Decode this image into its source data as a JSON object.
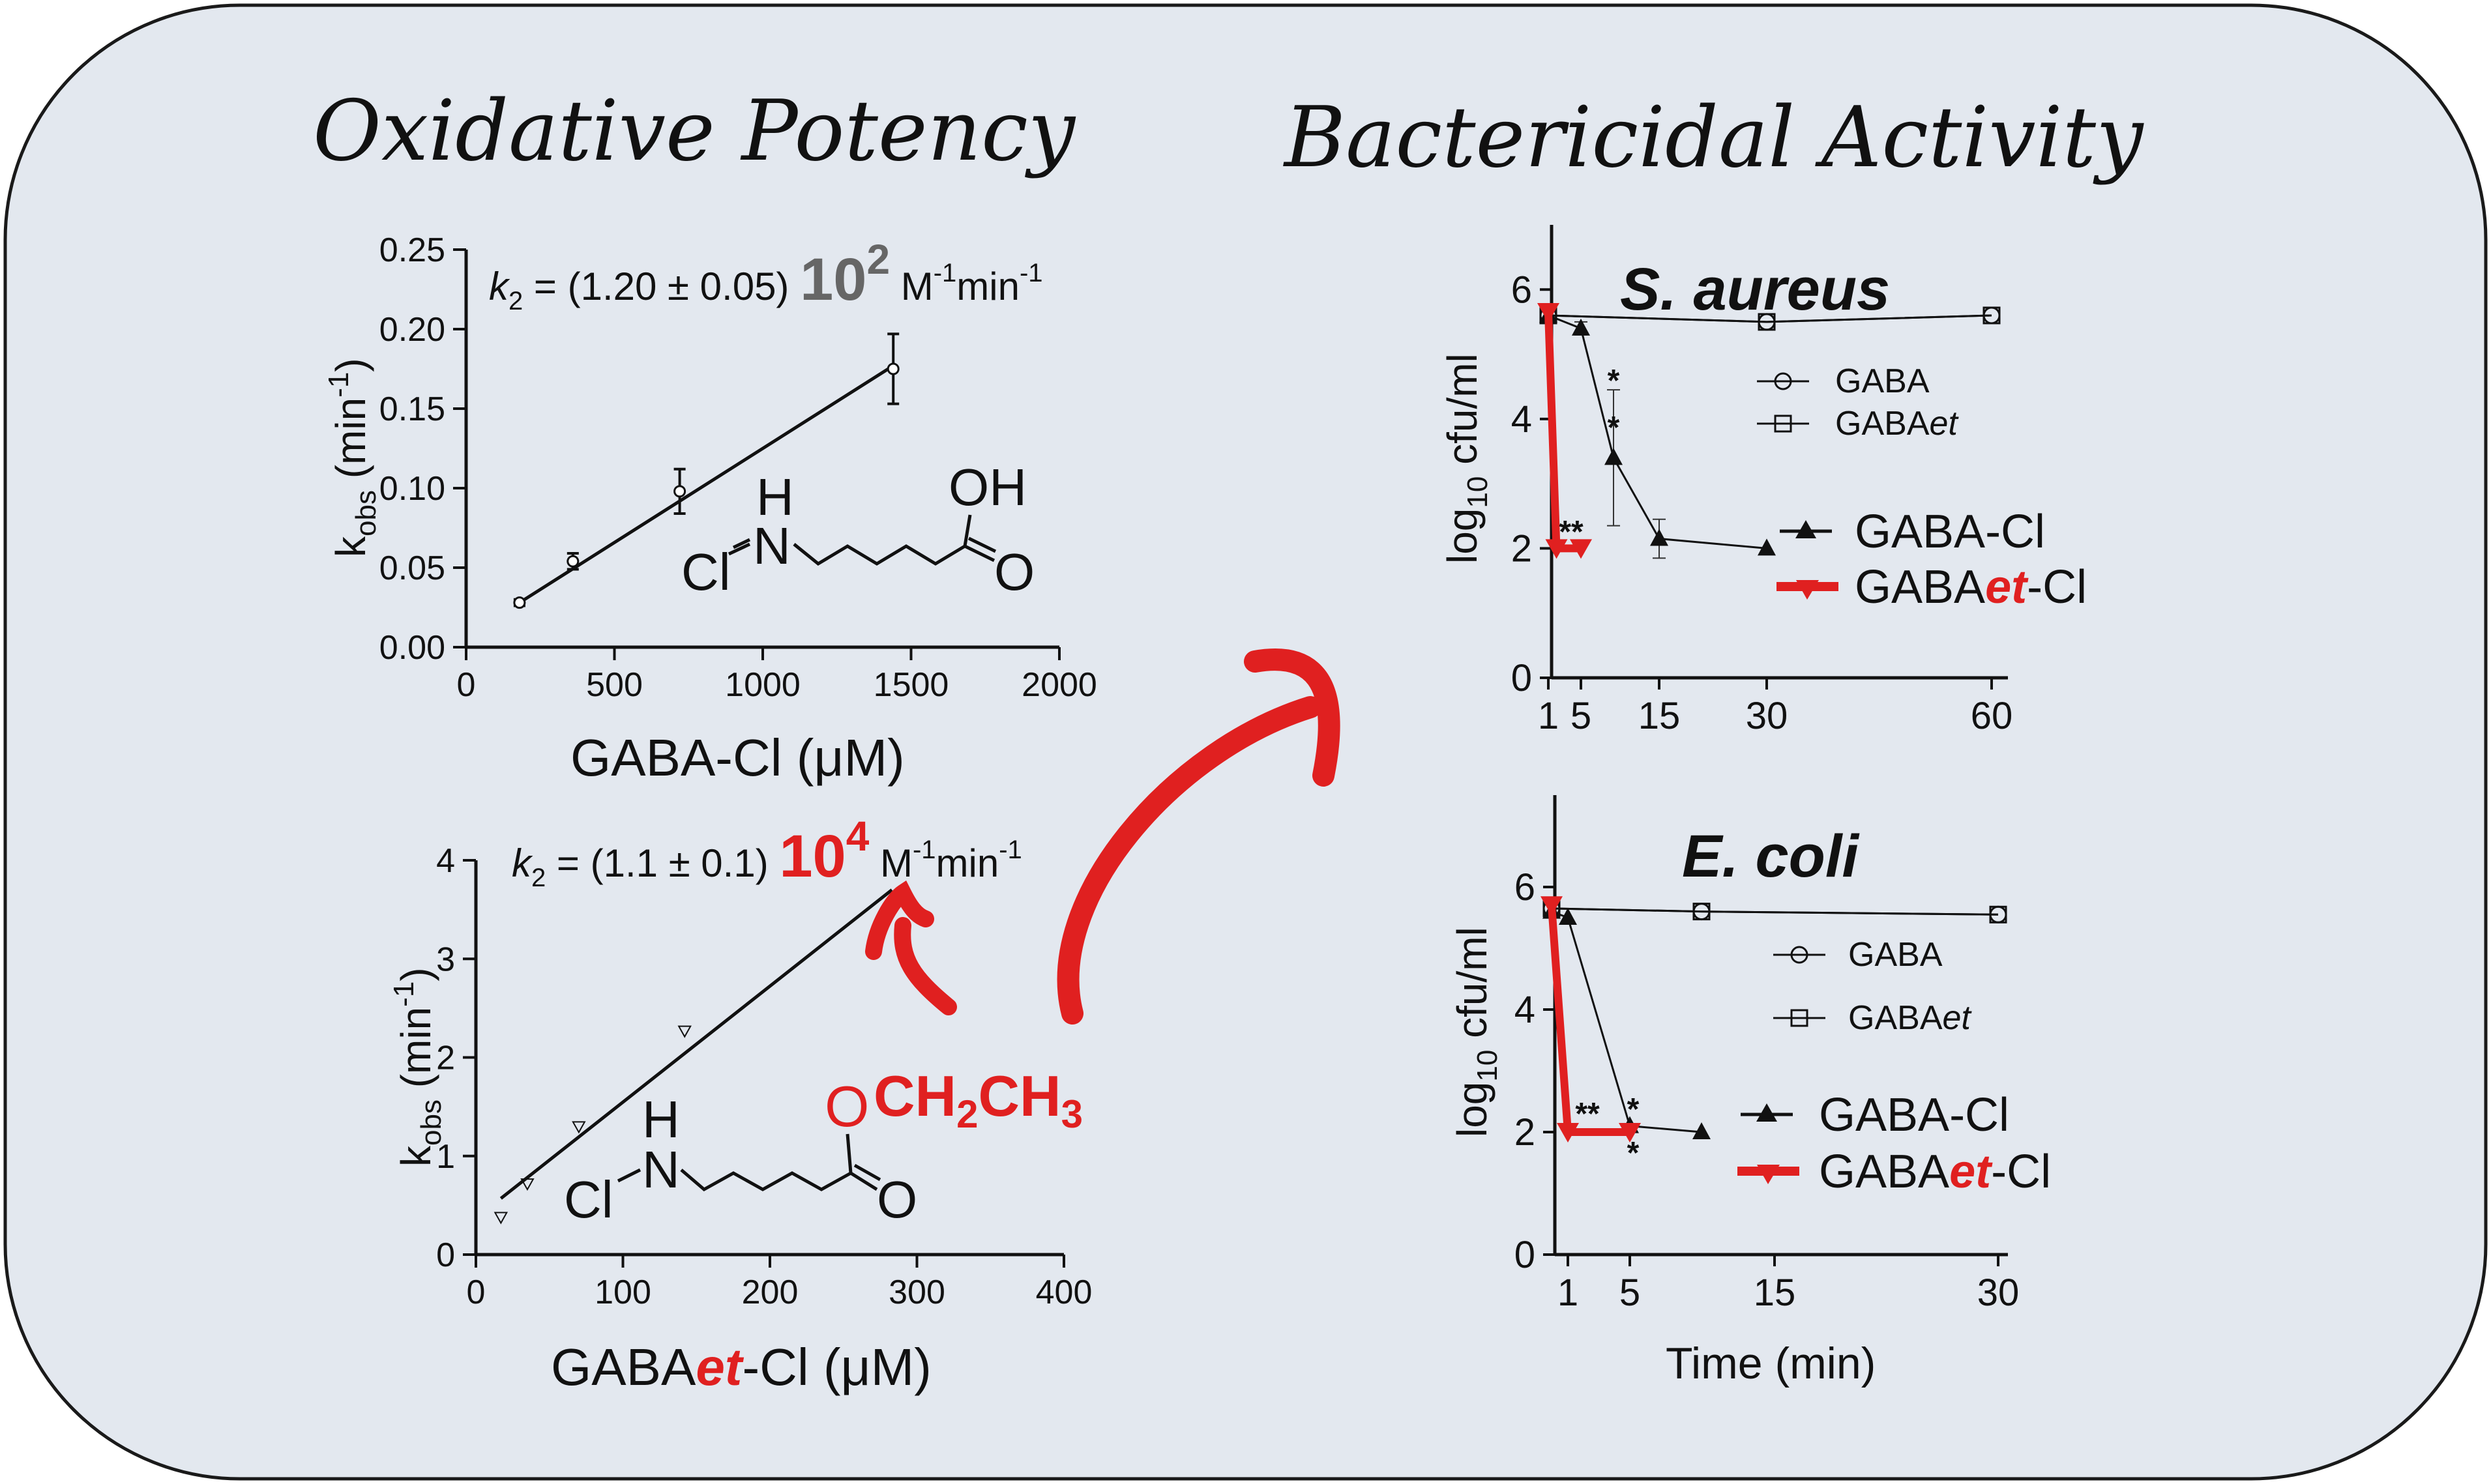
{
  "headings": {
    "left": "Oxidative Potency",
    "right": "Bactericidal Activity"
  },
  "colors": {
    "background": "#e3e8ef",
    "accent_red": "#e02020",
    "ink": "#111111"
  },
  "chart_data": [
    {
      "type": "scatter",
      "id": "gaba-cl-kobs",
      "xlabel": "GABA-Cl (μM)",
      "ylabel_main": "k",
      "ylabel_sub": "obs",
      "ylabel_unit": " (min",
      "ylabel_sup": "-1",
      "ylabel_close": ")",
      "xlim": [
        0,
        2000
      ],
      "ylim": [
        0,
        0.25
      ],
      "xticks": [
        0,
        500,
        1000,
        1500,
        2000
      ],
      "yticks": [
        "0.00",
        "0.05",
        "0.10",
        "0.15",
        "0.20",
        "0.25"
      ],
      "points": [
        {
          "x": 180,
          "y": 0.028,
          "err": 0.002
        },
        {
          "x": 360,
          "y": 0.054,
          "err": 0.005
        },
        {
          "x": 720,
          "y": 0.098,
          "err": 0.014
        },
        {
          "x": 1440,
          "y": 0.175,
          "err": 0.022
        }
      ],
      "fit": {
        "x": [
          180,
          1440
        ],
        "y": [
          0.028,
          0.177
        ]
      },
      "equation": {
        "k": "k",
        "sub": "2",
        "body": " = (1.20 ± 0.05) ",
        "exp_base": "10",
        "exp": "2",
        "unit1": " M",
        "unit1_sup": "-1",
        "unit2": "min",
        "unit2_sup": "-1"
      },
      "molecule": {
        "h": "H",
        "n": "N",
        "cl": "Cl",
        "oh": "OH",
        "o": "O"
      }
    },
    {
      "type": "scatter",
      "id": "gabaet-cl-kobs",
      "xlabel_pre": "GABA",
      "xlabel_red": "et",
      "xlabel_post": "-Cl (μM)",
      "ylabel_main": "k",
      "ylabel_sub": "obs",
      "ylabel_unit": " (min",
      "ylabel_sup": "-1",
      "ylabel_close": ")",
      "xlim": [
        0,
        400
      ],
      "ylim": [
        0,
        4
      ],
      "xticks": [
        0,
        100,
        200,
        300,
        400
      ],
      "yticks": [
        "0",
        "1",
        "2",
        "3",
        "4"
      ],
      "points": [
        {
          "x": 17,
          "y": 0.38
        },
        {
          "x": 35,
          "y": 0.72
        },
        {
          "x": 70,
          "y": 1.3
        },
        {
          "x": 142,
          "y": 2.27
        }
      ],
      "fit": {
        "x": [
          17,
          283
        ],
        "y": [
          0.57,
          3.7
        ]
      },
      "equation": {
        "k": "k",
        "sub": "2",
        "body": " = (1.1 ± 0.1) ",
        "exp_base": "10",
        "exp": "4",
        "unit1": " M",
        "unit1_sup": "-1",
        "unit2": "min",
        "unit2_sup": "-1"
      },
      "molecule": {
        "h": "H",
        "n": "N",
        "cl": "Cl",
        "o_ester": "O",
        "ch2": "CH",
        "ch2_sub": "2",
        "ch3": "CH",
        "ch3_sub": "3",
        "o": "O"
      }
    },
    {
      "type": "line",
      "id": "s-aureus",
      "title": "S. aureus",
      "ylabel_pre": "log",
      "ylabel_sub": "10",
      "ylabel_post": " cfu/ml",
      "ylim": [
        0,
        7
      ],
      "yticks": [
        "0",
        "2",
        "4",
        "6"
      ],
      "xticks": [
        "1",
        "5",
        "15",
        "30",
        "60"
      ],
      "series": [
        {
          "name": "GABA",
          "marker": "circle",
          "x": [
            1,
            30,
            60
          ],
          "y": [
            5.6,
            5.5,
            5.6
          ]
        },
        {
          "name": "GABAet",
          "name_pre": "GABA",
          "name_em": "et",
          "marker": "square",
          "x": [
            1,
            30,
            60
          ],
          "y": [
            5.6,
            5.5,
            5.6
          ]
        },
        {
          "name": "GABA-Cl",
          "marker": "triangle-up",
          "x": [
            1,
            5,
            10,
            15,
            30
          ],
          "y": [
            5.6,
            5.4,
            3.4,
            2.15,
            2.0
          ],
          "err": [
            0,
            0.1,
            1.05,
            0.3,
            0
          ]
        },
        {
          "name": "GABAet-Cl",
          "name_pre": "GABA",
          "name_red": "et",
          "name_post": "-Cl",
          "marker": "triangle-down",
          "x": [
            1,
            2,
            5
          ],
          "y": [
            5.65,
            2.0,
            2.0
          ]
        }
      ],
      "annotations": [
        "*",
        "*",
        "**"
      ]
    },
    {
      "type": "line",
      "id": "e-coli",
      "title": "E. coli",
      "xlabel": "Time (min)",
      "ylabel_pre": "log",
      "ylabel_sub": "10",
      "ylabel_post": " cfu/ml",
      "ylim": [
        0,
        7.5
      ],
      "yticks": [
        "0",
        "2",
        "4",
        "6"
      ],
      "xticks": [
        "1",
        "5",
        "15",
        "30"
      ],
      "series": [
        {
          "name": "GABA",
          "marker": "circle",
          "x": [
            0,
            10,
            30
          ],
          "y": [
            5.65,
            5.6,
            5.55
          ]
        },
        {
          "name": "GABAet",
          "name_pre": "GABA",
          "name_em": "et",
          "marker": "square",
          "x": [
            0,
            10,
            30
          ],
          "y": [
            5.65,
            5.6,
            5.55
          ]
        },
        {
          "name": "GABA-Cl",
          "marker": "triangle-up",
          "x": [
            0,
            1,
            5,
            10
          ],
          "y": [
            5.6,
            5.5,
            2.1,
            2.0
          ]
        },
        {
          "name": "GABAet-Cl",
          "name_pre": "GABA",
          "name_red": "et",
          "name_post": "-Cl",
          "marker": "triangle-down",
          "x": [
            0,
            1,
            5
          ],
          "y": [
            5.7,
            2.0,
            2.0
          ]
        }
      ],
      "annotations": [
        "**",
        "*",
        "*"
      ]
    }
  ]
}
